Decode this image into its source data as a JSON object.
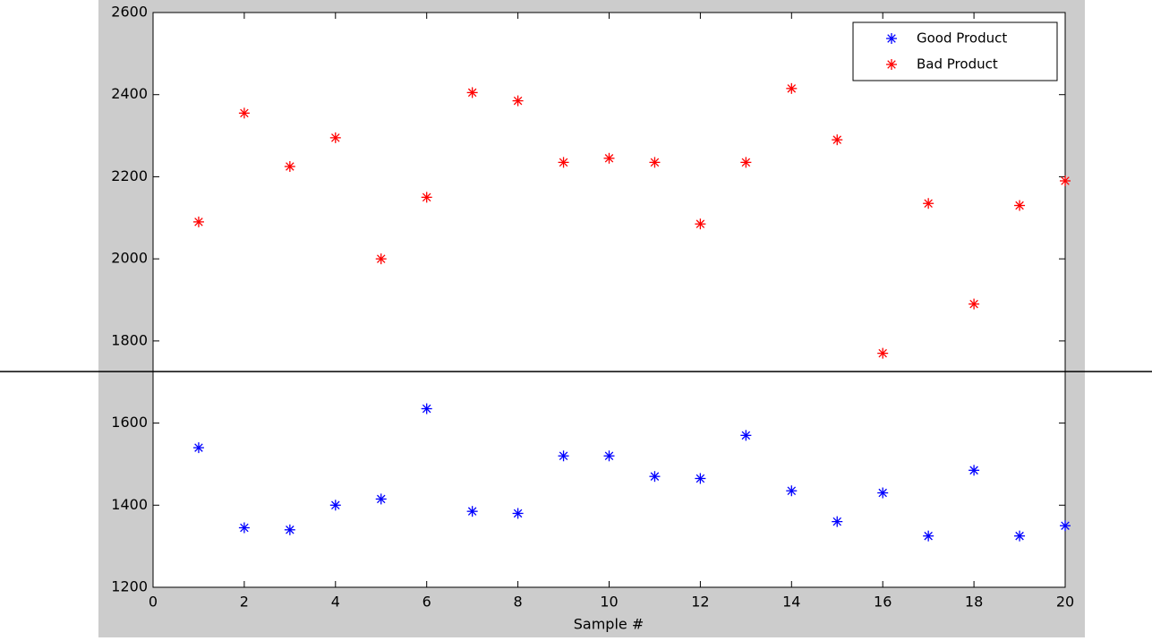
{
  "chart_data": {
    "type": "scatter",
    "x_label": "Sample #",
    "x": [
      1,
      2,
      3,
      4,
      5,
      6,
      7,
      8,
      9,
      10,
      11,
      12,
      13,
      14,
      15,
      16,
      17,
      18,
      19,
      20
    ],
    "series": [
      {
        "name": "Good Product",
        "color": "#0000ff",
        "values": [
          1540,
          1345,
          1340,
          1400,
          1415,
          1635,
          1385,
          1380,
          1520,
          1520,
          1470,
          1465,
          1570,
          1435,
          1360,
          1430,
          1325,
          1485,
          1325,
          1350
        ]
      },
      {
        "name": "Bad Product",
        "color": "#ff0000",
        "values": [
          2090,
          2355,
          2225,
          2295,
          2000,
          2150,
          2405,
          2385,
          2235,
          2245,
          2235,
          2085,
          2235,
          2415,
          2290,
          1770,
          2135,
          1890,
          2130,
          2190
        ]
      }
    ],
    "xlim": [
      0,
      20
    ],
    "xticks": [
      0,
      2,
      4,
      6,
      8,
      10,
      12,
      14,
      16,
      18,
      20
    ],
    "ylim": [
      1200,
      2600
    ],
    "yticks": [
      1200,
      1400,
      1600,
      1800,
      2000,
      2200,
      2400,
      2600
    ],
    "legend": "upper right",
    "grid": false
  }
}
